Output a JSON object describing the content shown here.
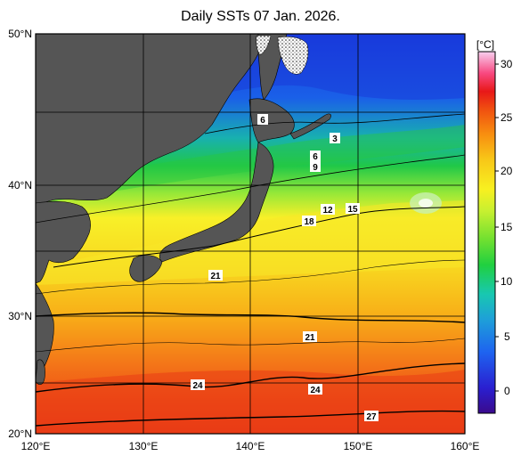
{
  "title": "Daily SSTs 07 Jan. 2026.",
  "map": {
    "lat_labels": [
      "50°N",
      "40°N",
      "30°N",
      "20°N"
    ],
    "lon_labels": [
      "120°E",
      "130°E",
      "140°E",
      "150°E",
      "160°E"
    ],
    "extent": {
      "lon": [
        120,
        160
      ],
      "lat": [
        20,
        50
      ]
    },
    "land_color": "#555555",
    "grid": "on"
  },
  "colorbar": {
    "unit": "[°C]",
    "ticks": [
      "30",
      "25",
      "20",
      "15",
      "10",
      "5",
      "0"
    ],
    "range": [
      -2,
      32
    ],
    "colors": [
      "#3a0a8c",
      "#2a1fd0",
      "#1e64f0",
      "#1ea0d8",
      "#18c8b0",
      "#20d040",
      "#70e030",
      "#c8f030",
      "#f8f020",
      "#f8c818",
      "#f89010",
      "#f05010",
      "#e81818",
      "#f84880",
      "#f890d8",
      "#f8d0f0"
    ]
  },
  "contour_labels": [
    "6",
    "3",
    "6",
    "9",
    "12",
    "15",
    "18",
    "21",
    "21",
    "24",
    "24",
    "27"
  ]
}
